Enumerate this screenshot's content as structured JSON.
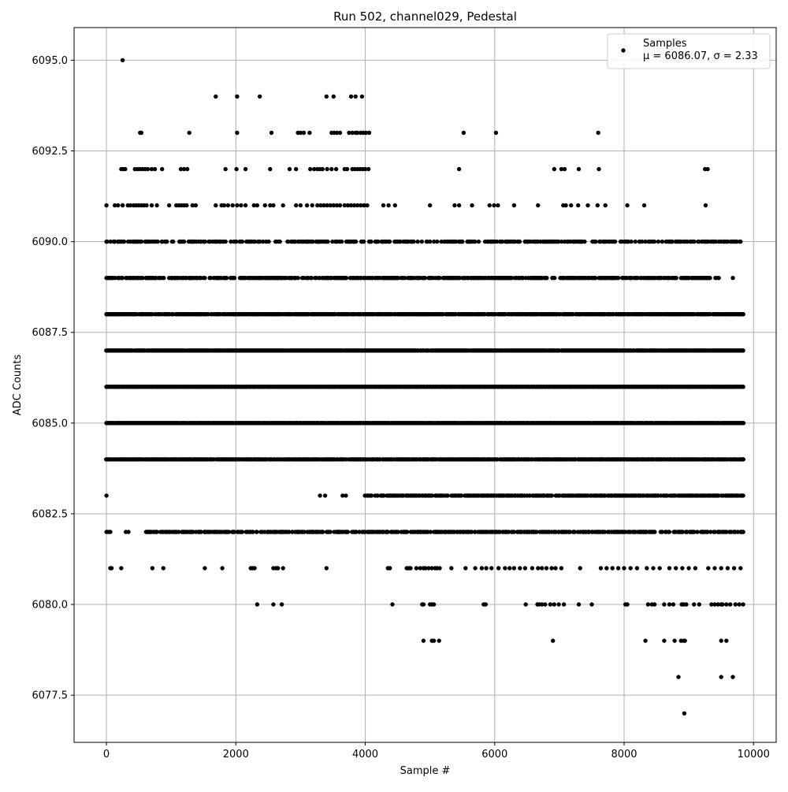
{
  "chart_data": {
    "type": "scatter",
    "title": "Run 502, channel029, Pedestal",
    "xlabel": "Sample #",
    "ylabel": "ADC Counts",
    "xlim": [
      -500,
      10350
    ],
    "ylim": [
      6076.2,
      6095.9
    ],
    "xticks": [
      0,
      2000,
      4000,
      6000,
      8000,
      10000
    ],
    "xtick_labels": [
      "0",
      "2000",
      "4000",
      "6000",
      "8000",
      "10000"
    ],
    "yticks": [
      6077.5,
      6080.0,
      6082.5,
      6085.0,
      6087.5,
      6090.0,
      6092.5,
      6095.0
    ],
    "ytick_labels": [
      "6077.5",
      "6080.0",
      "6082.5",
      "6085.0",
      "6087.5",
      "6090.0",
      "6092.5",
      "6095.0"
    ],
    "grid": true,
    "legend": {
      "placement": "top-right",
      "label": "Samples",
      "stats": "μ = 6086.07, σ = 2.33"
    },
    "series": [
      {
        "name": "Samples",
        "color": "#000000",
        "n_samples": 9850,
        "levels": [
          {
            "y": 6095,
            "x": [
              250
            ]
          },
          {
            "y": 6094,
            "x": [
              1690,
              2020,
              2370,
              3400,
              3510,
              3780,
              3850,
              3950
            ]
          },
          {
            "y": 6093,
            "x": [
              520,
              540,
              1280,
              2020,
              2550,
              2960,
              3000,
              3050,
              3140,
              3480,
              3520,
              3560,
              3610,
              3750,
              3800,
              3850,
              3880,
              3930,
              3970,
              4010,
              4060,
              5520,
              6020,
              7600
            ]
          },
          {
            "y": 6092,
            "x": [
              230,
              260,
              290,
              440,
              480,
              520,
              560,
              600,
              640,
              700,
              750,
              860,
              1150,
              1200,
              1250,
              1840,
              2010,
              2150,
              2530,
              2830,
              2930,
              3150,
              3210,
              3260,
              3300,
              3340,
              3410,
              3480,
              3550,
              3680,
              3720,
              3800,
              3840,
              3880,
              3920,
              3960,
              4000,
              4050,
              5450,
              6920,
              7030,
              7080,
              7300,
              7610,
              9250,
              9290
            ]
          },
          {
            "y": 6091,
            "x": [
              0,
              130,
              180,
              250,
              330,
              370,
              420,
              460,
              500,
              540,
              580,
              620,
              700,
              780,
              970,
              1080,
              1120,
              1160,
              1200,
              1240,
              1330,
              1380,
              1690,
              1780,
              1820,
              1880,
              1950,
              2020,
              2080,
              2150,
              2280,
              2330,
              2450,
              2530,
              2580,
              2730,
              2930,
              3000,
              3100,
              3180,
              3260,
              3310,
              3360,
              3410,
              3460,
              3510,
              3560,
              3610,
              3680,
              3730,
              3780,
              3830,
              3880,
              3930,
              3980,
              4030,
              4280,
              4360,
              4460,
              5000,
              5380,
              5450,
              5650,
              5920,
              5990,
              6050,
              6300,
              6670,
              7060,
              7100,
              7180,
              7290,
              7440,
              7590,
              7710,
              8050,
              8310,
              9260
            ]
          },
          {
            "y": 6090,
            "x": [
              0,
              180,
              600,
              5500,
              9800
            ],
            "band": [
              0,
              9820
            ],
            "density": 0.45
          },
          {
            "y": 6089,
            "x": [
              0,
              9680
            ],
            "band": [
              0,
              9500
            ],
            "density": 0.62
          },
          {
            "y": 6088,
            "x": [
              0,
              9840
            ],
            "band": [
              0,
              9840
            ],
            "density": 0.85
          },
          {
            "y": 6087,
            "x": [
              0,
              9840
            ],
            "band": [
              0,
              9840
            ],
            "density": 0.97
          },
          {
            "y": 6086,
            "x": [
              0,
              9840
            ],
            "band": [
              0,
              9840
            ],
            "density": 1.0
          },
          {
            "y": 6085,
            "x": [
              0,
              9840
            ],
            "band": [
              0,
              9840
            ],
            "density": 0.95
          },
          {
            "y": 6084,
            "x": [
              0,
              9840
            ],
            "band": [
              0,
              9840
            ],
            "density": 0.85
          },
          {
            "y": 6083,
            "x": [
              0,
              3300,
              3380,
              3650,
              3700,
              9840
            ],
            "band": [
              4000,
              9840
            ],
            "density": 0.72
          },
          {
            "y": 6082,
            "x": [
              0,
              30,
              60,
              300,
              340,
              1180,
              1320,
              1450,
              1520,
              3200,
              3600,
              3680,
              3730,
              4200,
              4330,
              4350,
              4400,
              9840
            ],
            "band": [
              600,
              9840
            ],
            "density": 0.55
          },
          {
            "y": 6081,
            "x": [
              60,
              80,
              230,
              710,
              880,
              1520,
              1790,
              2230,
              2260,
              2290,
              2580,
              2620,
              2650,
              2730,
              3400,
              4350,
              4380,
              4640,
              4670,
              4700,
              4790,
              4850,
              4900,
              4930,
              4980,
              5030,
              5080,
              5110,
              5150,
              5330,
              5550,
              5700,
              5800,
              5870,
              5950,
              6060,
              6160,
              6230,
              6300,
              6390,
              6470,
              6580,
              6670,
              6730,
              6800,
              6880,
              6940,
              7030,
              7320,
              7640,
              7730,
              7820,
              7910,
              8000,
              8100,
              8200,
              8350,
              8450,
              8550,
              8700,
              8800,
              8900,
              9000,
              9100,
              9300,
              9400,
              9500,
              9600,
              9700,
              9800
            ]
          },
          {
            "y": 6080,
            "x": [
              2330,
              2580,
              2710,
              4420,
              4880,
              4900,
              5000,
              5030,
              5060,
              5830,
              5860,
              6480,
              6660,
              6690,
              6730,
              6780,
              6860,
              6920,
              6990,
              7070,
              7300,
              7500,
              8020,
              8050,
              8370,
              8430,
              8470,
              8620,
              8700,
              8760,
              8890,
              8920,
              8960,
              9080,
              9160,
              9350,
              9400,
              9450,
              9500,
              9520,
              9580,
              9640,
              9720,
              9780,
              9840
            ]
          },
          {
            "y": 6079,
            "x": [
              4900,
              5030,
              5060,
              5140,
              6900,
              8330,
              8620,
              8780,
              8880,
              8920,
              8940,
              9500,
              9580
            ]
          },
          {
            "y": 6078,
            "x": [
              8840,
              9500,
              9680
            ]
          },
          {
            "y": 6077,
            "x": [
              8930
            ]
          }
        ]
      }
    ]
  }
}
